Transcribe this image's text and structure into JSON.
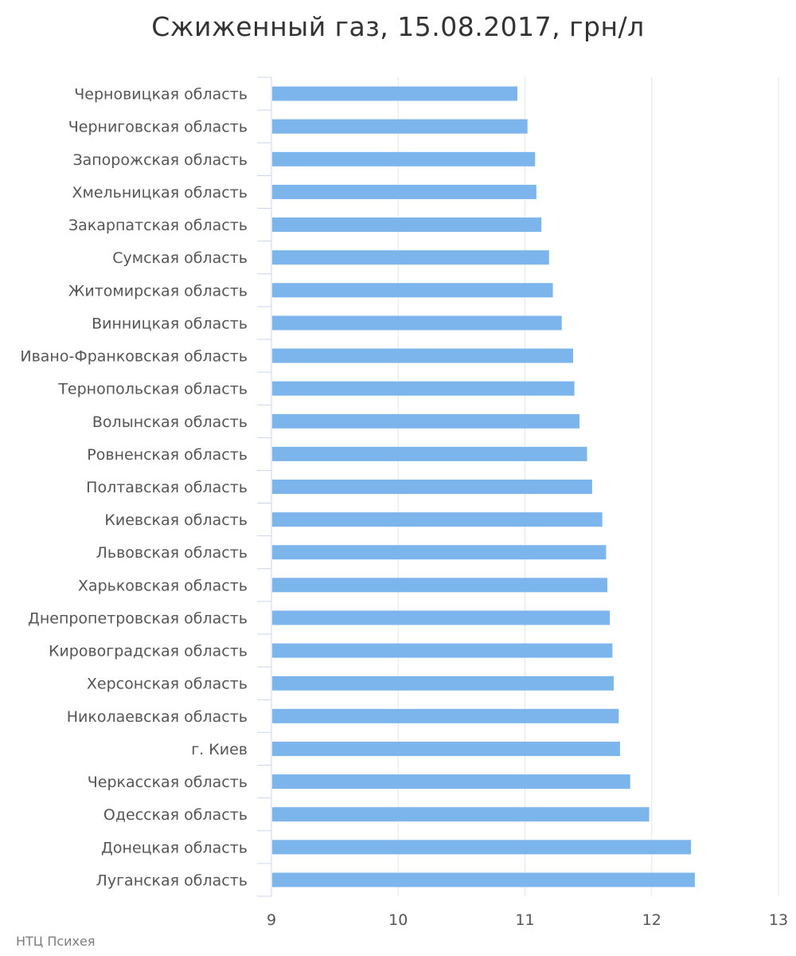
{
  "chart_data": {
    "type": "bar",
    "orientation": "horizontal",
    "title": "Сжиженный газ, 15.08.2017, грн/л",
    "categories": [
      "Черновицкая область",
      "Черниговская область",
      "Запорожская область",
      "Хмельницкая область",
      "Закарпатская область",
      "Сумская область",
      "Житомирская область",
      "Винницкая область",
      "Ивано-Франковская область",
      "Тернопольская область",
      "Волынская область",
      "Ровненская область",
      "Полтавская область",
      "Киевская область",
      "Львовская область",
      "Харьковская область",
      "Днепропетровская область",
      "Кировоградская область",
      "Херсонская область",
      "Николаевская область",
      "г. Киев",
      "Черкасская область",
      "Одесская область",
      "Донецкая область",
      "Луганская область"
    ],
    "values": [
      10.94,
      11.02,
      11.08,
      11.09,
      11.13,
      11.19,
      11.22,
      11.29,
      11.38,
      11.39,
      11.43,
      11.49,
      11.53,
      11.61,
      11.64,
      11.65,
      11.67,
      11.69,
      11.7,
      11.74,
      11.75,
      11.83,
      11.98,
      12.31,
      12.34
    ],
    "xlim": [
      9,
      13
    ],
    "ticks": [
      "9",
      "10",
      "11",
      "12",
      "13"
    ],
    "grid": true,
    "bar_color": "#7cb5ec"
  },
  "source": "НТЦ Психея"
}
